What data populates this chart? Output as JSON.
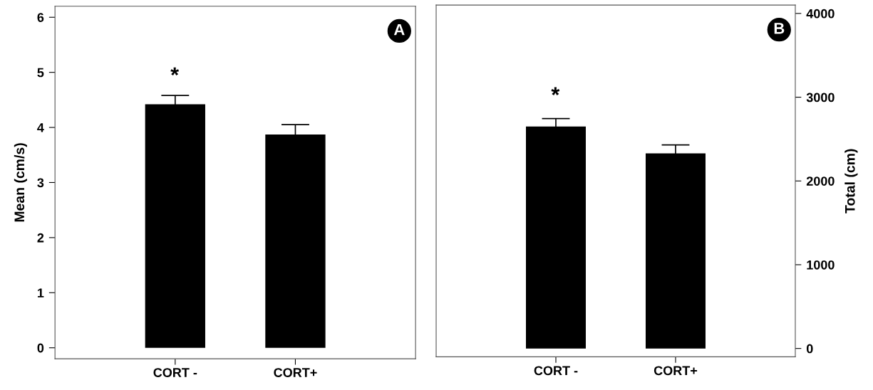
{
  "chart_data": [
    {
      "type": "bar",
      "categories": [
        "CORT -",
        "CORT+"
      ],
      "ylabel": "Mean (cm/s)",
      "ylim": [
        -0.2,
        6.2
      ],
      "yticks": [
        0,
        1,
        2,
        3,
        4,
        5,
        6
      ],
      "series": [
        {
          "color": "#000000",
          "values": [
            4.42,
            3.87
          ],
          "errors": [
            0.16,
            0.18
          ]
        }
      ],
      "annotations": [
        "A",
        "*"
      ],
      "grid": false,
      "legend": false
    },
    {
      "type": "bar",
      "categories": [
        "CORT -",
        "CORT+"
      ],
      "y2label": "Total (cm)",
      "y2lim": [
        -100,
        4100
      ],
      "y2ticks": [
        0,
        1000,
        2000,
        3000,
        4000
      ],
      "series": [
        {
          "color": "#000000",
          "values": [
            2650,
            2330
          ],
          "errors": [
            95,
            100
          ],
          "axis": "y2"
        }
      ],
      "annotations": [
        "B",
        "*"
      ],
      "grid": false,
      "legend": false
    }
  ]
}
